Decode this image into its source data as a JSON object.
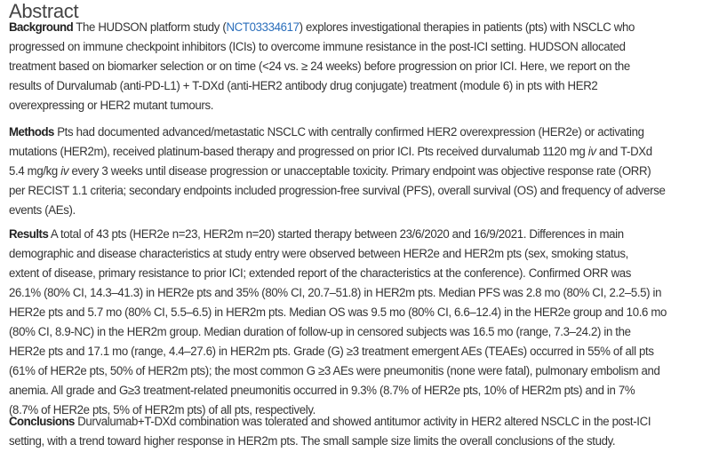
{
  "title": "Abstract",
  "link_color": "#2a6ebb",
  "sections": [
    {
      "label": "Background",
      "lines": [
        [
          {
            "t": " The HUDSON platform study ("
          },
          {
            "t": "NCT03334617",
            "s": "link"
          },
          {
            "t": ") explores investigational therapies in patients (pts) with NSCLC who"
          }
        ],
        [
          {
            "t": "progressed on immune checkpoint inhibitors (ICIs) to overcome immune resistance in the post-ICI setting. HUDSON allocated"
          }
        ],
        [
          {
            "t": "treatment based on biomarker selection or on time (<24 vs. ≥ 24 weeks) before progression on prior ICI. Here, we report on the"
          }
        ],
        [
          {
            "t": "results of Durvalumab (anti-PD-L1) + T-DXd (anti-HER2 antibody drug conjugate) treatment (module 6) in pts with HER2"
          }
        ],
        [
          {
            "t": "overexpressing or HER2 mutant tumours."
          }
        ]
      ]
    },
    {
      "label": "Methods",
      "lines": [
        [
          {
            "t": " Pts had documented advanced/metastatic NSCLC with centrally confirmed HER2 overexpression (HER2e) or activating"
          }
        ],
        [
          {
            "t": "mutations (HER2m), received platinum-based therapy and progressed on prior ICI. Pts received durvalumab 1120 mg "
          },
          {
            "t": "iv",
            "s": "it"
          },
          {
            "t": " and T-DXd"
          }
        ],
        [
          {
            "t": "5.4 mg/kg "
          },
          {
            "t": "iv",
            "s": "it"
          },
          {
            "t": " every 3 weeks until disease progression or unacceptable toxicity. Primary endpoint was objective response rate (ORR)"
          }
        ],
        [
          {
            "t": "per RECIST 1.1 criteria; secondary endpoints included progression-free survival (PFS), overall survival (OS) and frequency of adverse"
          }
        ],
        [
          {
            "t": "events (AEs)."
          }
        ]
      ]
    },
    {
      "label": "Results",
      "lines": [
        [
          {
            "t": " A total of 43 pts (HER2e n=23, HER2m n=20) started therapy between 23/6/2020 and 16/9/2021. Differences in main"
          }
        ],
        [
          {
            "t": "demographic and disease characteristics at study entry were observed between HER2e and HER2m pts (sex, smoking status,"
          }
        ],
        [
          {
            "t": "extent of disease, primary resistance to prior ICI; extended report of the characteristics at the conference). Confirmed ORR was"
          }
        ],
        [
          {
            "t": "26.1% (80% CI, 14.3–41.3) in HER2e pts and 35% (80% CI, 20.7–51.8) in HER2m pts. Median PFS was 2.8 mo (80% CI, 2.2–5.5) in"
          }
        ],
        [
          {
            "t": "HER2e pts and 5.7 mo (80% CI, 5.5–6.5) in HER2m pts. Median OS was 9.5 mo (80% CI, 6.6–12.4) in the HER2e group and 10.6 mo"
          }
        ],
        [
          {
            "t": "(80% CI, 8.9-NC) in the HER2m group. Median duration of follow-up in censored subjects was 16.5 mo (range, 7.3–24.2) in the"
          }
        ],
        [
          {
            "t": "HER2e pts and 17.1 mo (range, 4.4–27.6) in HER2m pts. Grade (G) ≥3 treatment emergent AEs (TEAEs) occurred in 55% of all pts"
          }
        ],
        [
          {
            "t": "(61% of HER2e pts, 50% of HER2m pts); the most common G ≥3 AEs were pneumonitis (none were fatal), pulmonary embolism and"
          }
        ],
        [
          {
            "t": "anemia. All grade and G≥3 treatment-related pneumonitis occurred in 9.3% (8.7% of HER2e pts, 10% of HER2m pts) and in 7%"
          }
        ],
        [
          {
            "t": "(8.7% of HER2e pts, 5% of HER2m pts) of all pts, respectively."
          }
        ]
      ]
    },
    {
      "label": "Conclusions",
      "lines": [
        [
          {
            "t": " Durvalumab+T-DXd combination was tolerated and showed antitumor activity in HER2 altered NSCLC in the post-ICI"
          }
        ],
        [
          {
            "t": "setting, with a trend toward higher response in HER2m pts. The small sample size limits the overall conclusions of the study."
          }
        ]
      ]
    }
  ]
}
